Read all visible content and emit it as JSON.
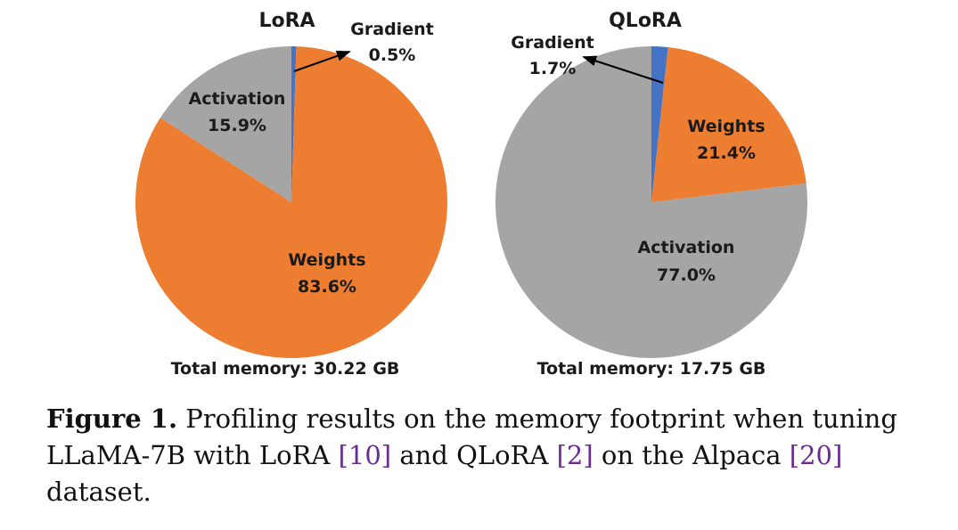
{
  "chart_data": [
    {
      "type": "pie",
      "title": "LoRA",
      "slices": [
        {
          "label": "Gradient",
          "value": 0.5,
          "text": "0.5%",
          "color": "#4472C4"
        },
        {
          "label": "Weights",
          "value": 83.6,
          "text": "83.6%",
          "color": "#ED7D31"
        },
        {
          "label": "Activation",
          "value": 15.9,
          "text": "15.9%",
          "color": "#A5A5A5"
        }
      ],
      "footer": "Total memory: 30.22 GB"
    },
    {
      "type": "pie",
      "title": "QLoRA",
      "slices": [
        {
          "label": "Gradient",
          "value": 1.7,
          "text": "1.7%",
          "color": "#4472C4"
        },
        {
          "label": "Weights",
          "value": 21.4,
          "text": "21.4%",
          "color": "#ED7D31"
        },
        {
          "label": "Activation",
          "value": 77.0,
          "text": "77.0%",
          "color": "#A5A5A5"
        }
      ],
      "footer": "Total memory: 17.75 GB"
    }
  ],
  "caption": {
    "label": "Figure 1.",
    "text1": " Profiling results on the memory footprint when tuning LLaMA-7B with LoRA ",
    "ref1": "[10]",
    "text2": " and QLoRA ",
    "ref2": "[2]",
    "text3": " on the Alpaca ",
    "ref3": "[20]",
    "text4": " dataset."
  }
}
